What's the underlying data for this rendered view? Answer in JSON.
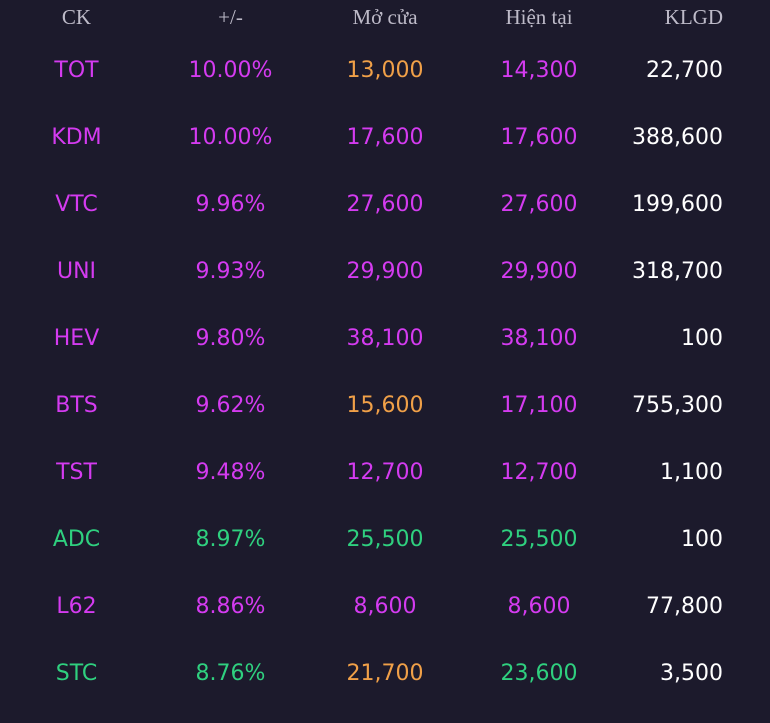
{
  "colors": {
    "background": "#1c1a2c",
    "ceiling": "#d43bf0",
    "up": "#2fd07f",
    "reference": "#f0a048",
    "neutral": "#ffffff",
    "header": "#bdbac8"
  },
  "header": {
    "symbol": "CK",
    "change": "+/-",
    "open": "Mở cửa",
    "current": "Hiện tại",
    "volume": "KLGD"
  },
  "rows": [
    {
      "symbol": "TOT",
      "change": "10.00%",
      "open": "13,000",
      "current": "14,300",
      "volume": "22,700",
      "symbol_color": "#d43bf0",
      "change_color": "#d43bf0",
      "open_color": "#f0a048",
      "current_color": "#d43bf0"
    },
    {
      "symbol": "KDM",
      "change": "10.00%",
      "open": "17,600",
      "current": "17,600",
      "volume": "388,600",
      "symbol_color": "#d43bf0",
      "change_color": "#d43bf0",
      "open_color": "#d43bf0",
      "current_color": "#d43bf0"
    },
    {
      "symbol": "VTC",
      "change": "9.96%",
      "open": "27,600",
      "current": "27,600",
      "volume": "199,600",
      "symbol_color": "#d43bf0",
      "change_color": "#d43bf0",
      "open_color": "#d43bf0",
      "current_color": "#d43bf0"
    },
    {
      "symbol": "UNI",
      "change": "9.93%",
      "open": "29,900",
      "current": "29,900",
      "volume": "318,700",
      "symbol_color": "#d43bf0",
      "change_color": "#d43bf0",
      "open_color": "#d43bf0",
      "current_color": "#d43bf0"
    },
    {
      "symbol": "HEV",
      "change": "9.80%",
      "open": "38,100",
      "current": "38,100",
      "volume": "100",
      "symbol_color": "#d43bf0",
      "change_color": "#d43bf0",
      "open_color": "#d43bf0",
      "current_color": "#d43bf0"
    },
    {
      "symbol": "BTS",
      "change": "9.62%",
      "open": "15,600",
      "current": "17,100",
      "volume": "755,300",
      "symbol_color": "#d43bf0",
      "change_color": "#d43bf0",
      "open_color": "#f0a048",
      "current_color": "#d43bf0"
    },
    {
      "symbol": "TST",
      "change": "9.48%",
      "open": "12,700",
      "current": "12,700",
      "volume": "1,100",
      "symbol_color": "#d43bf0",
      "change_color": "#d43bf0",
      "open_color": "#d43bf0",
      "current_color": "#d43bf0"
    },
    {
      "symbol": "ADC",
      "change": "8.97%",
      "open": "25,500",
      "current": "25,500",
      "volume": "100",
      "symbol_color": "#2fd07f",
      "change_color": "#2fd07f",
      "open_color": "#2fd07f",
      "current_color": "#2fd07f"
    },
    {
      "symbol": "L62",
      "change": "8.86%",
      "open": "8,600",
      "current": "8,600",
      "volume": "77,800",
      "symbol_color": "#d43bf0",
      "change_color": "#d43bf0",
      "open_color": "#d43bf0",
      "current_color": "#d43bf0"
    },
    {
      "symbol": "STC",
      "change": "8.76%",
      "open": "21,700",
      "current": "23,600",
      "volume": "3,500",
      "symbol_color": "#2fd07f",
      "change_color": "#2fd07f",
      "open_color": "#f0a048",
      "current_color": "#2fd07f"
    }
  ]
}
